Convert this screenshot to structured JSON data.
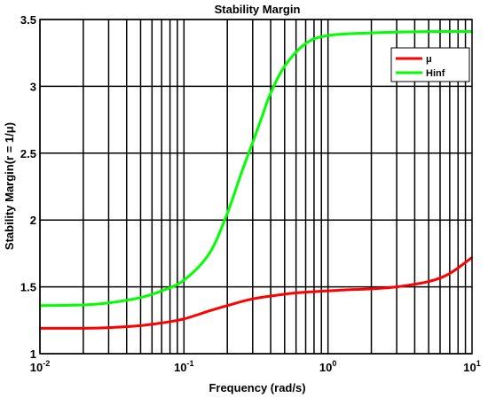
{
  "chart_data": {
    "type": "line",
    "title": "Stability Margin",
    "xlabel": "Frequency (rad/s)",
    "ylabel": "Stability Margin(r = 1/μ)",
    "xscale": "log",
    "xlim": [
      0.01,
      10
    ],
    "ylim": [
      1,
      3.5
    ],
    "grid": true,
    "legend_position": "top-right",
    "x_ticks": [
      {
        "value": 0.01,
        "base": "10",
        "exp": "-2"
      },
      {
        "value": 0.1,
        "base": "10",
        "exp": "-1"
      },
      {
        "value": 1,
        "base": "10",
        "exp": "0"
      },
      {
        "value": 10,
        "base": "10",
        "exp": "1"
      }
    ],
    "y_ticks": [
      {
        "value": 1,
        "label": "1"
      },
      {
        "value": 1.5,
        "label": "1.5"
      },
      {
        "value": 2,
        "label": "2"
      },
      {
        "value": 2.5,
        "label": "2.5"
      },
      {
        "value": 3,
        "label": "3"
      },
      {
        "value": 3.5,
        "label": "3.5"
      }
    ],
    "series": [
      {
        "name": "μ",
        "color": "#ff0000",
        "x": [
          0.01,
          0.02,
          0.03,
          0.05,
          0.07,
          0.1,
          0.15,
          0.2,
          0.3,
          0.5,
          0.7,
          1,
          1.5,
          2,
          3,
          5,
          7,
          10
        ],
        "y": [
          1.19,
          1.19,
          1.195,
          1.21,
          1.23,
          1.26,
          1.32,
          1.36,
          1.41,
          1.445,
          1.46,
          1.47,
          1.48,
          1.485,
          1.5,
          1.54,
          1.6,
          1.72
        ]
      },
      {
        "name": "Hinf",
        "color": "#00ff00",
        "x": [
          0.01,
          0.02,
          0.03,
          0.05,
          0.07,
          0.1,
          0.15,
          0.2,
          0.25,
          0.3,
          0.35,
          0.4,
          0.5,
          0.7,
          1,
          2,
          5,
          10
        ],
        "y": [
          1.36,
          1.365,
          1.38,
          1.42,
          1.47,
          1.55,
          1.75,
          2.05,
          2.35,
          2.58,
          2.78,
          2.95,
          3.15,
          3.32,
          3.38,
          3.4,
          3.41,
          3.41
        ]
      }
    ]
  }
}
